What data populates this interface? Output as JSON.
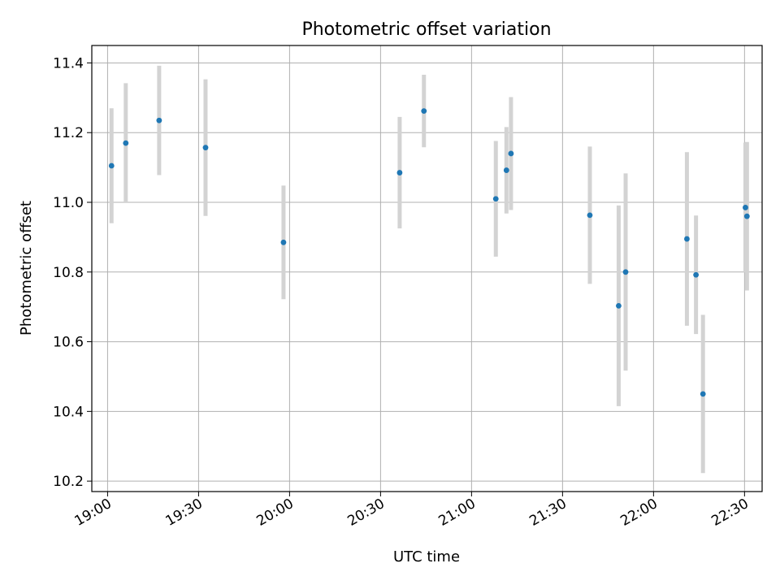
{
  "chart_data": {
    "type": "scatter",
    "title": "Photometric offset variation",
    "xlabel": "UTC time",
    "ylabel": "Photometric offset",
    "xlim": [
      1134.8,
      1355.8
    ],
    "ylim": [
      10.17,
      11.45
    ],
    "grid": true,
    "x_ticks": [
      {
        "value": 1140,
        "label": "19:00"
      },
      {
        "value": 1170,
        "label": "19:30"
      },
      {
        "value": 1200,
        "label": "20:00"
      },
      {
        "value": 1230,
        "label": "20:30"
      },
      {
        "value": 1260,
        "label": "21:00"
      },
      {
        "value": 1290,
        "label": "21:30"
      },
      {
        "value": 1320,
        "label": "22:00"
      },
      {
        "value": 1350,
        "label": "22:30"
      }
    ],
    "y_ticks": [
      {
        "value": 10.2,
        "label": "10.2"
      },
      {
        "value": 10.4,
        "label": "10.4"
      },
      {
        "value": 10.6,
        "label": "10.6"
      },
      {
        "value": 10.8,
        "label": "10.8"
      },
      {
        "value": 11.0,
        "label": "11.0"
      },
      {
        "value": 11.2,
        "label": "11.2"
      },
      {
        "value": 11.4,
        "label": "11.4"
      }
    ],
    "series": [
      {
        "name": "offset",
        "marker_color": "#1f77b4",
        "errorbar_color": "#d3d3d3",
        "points": [
          {
            "x": 1141.3,
            "y": 11.105,
            "err": 0.165
          },
          {
            "x": 1146.0,
            "y": 11.17,
            "err": 0.172
          },
          {
            "x": 1157.0,
            "y": 11.235,
            "err": 0.157
          },
          {
            "x": 1172.3,
            "y": 11.157,
            "err": 0.196
          },
          {
            "x": 1198.0,
            "y": 10.885,
            "err": 0.163
          },
          {
            "x": 1236.3,
            "y": 11.085,
            "err": 0.16
          },
          {
            "x": 1244.3,
            "y": 11.262,
            "err": 0.104
          },
          {
            "x": 1268.0,
            "y": 11.01,
            "err": 0.166
          },
          {
            "x": 1271.5,
            "y": 11.092,
            "err": 0.124
          },
          {
            "x": 1273.0,
            "y": 11.14,
            "err": 0.162
          },
          {
            "x": 1299.0,
            "y": 10.963,
            "err": 0.197
          },
          {
            "x": 1308.5,
            "y": 10.703,
            "err": 0.288
          },
          {
            "x": 1310.8,
            "y": 10.8,
            "err": 0.283
          },
          {
            "x": 1350.3,
            "y": 10.985,
            "err": 0.186
          },
          {
            "x": 1350.8,
            "y": 10.96,
            "err": 0.213
          },
          {
            "x": 1331.0,
            "y": 10.895,
            "err": 0.249
          },
          {
            "x": 1334.0,
            "y": 10.792,
            "err": 0.17
          },
          {
            "x": 1336.3,
            "y": 10.45,
            "err": 0.227
          }
        ]
      }
    ]
  }
}
